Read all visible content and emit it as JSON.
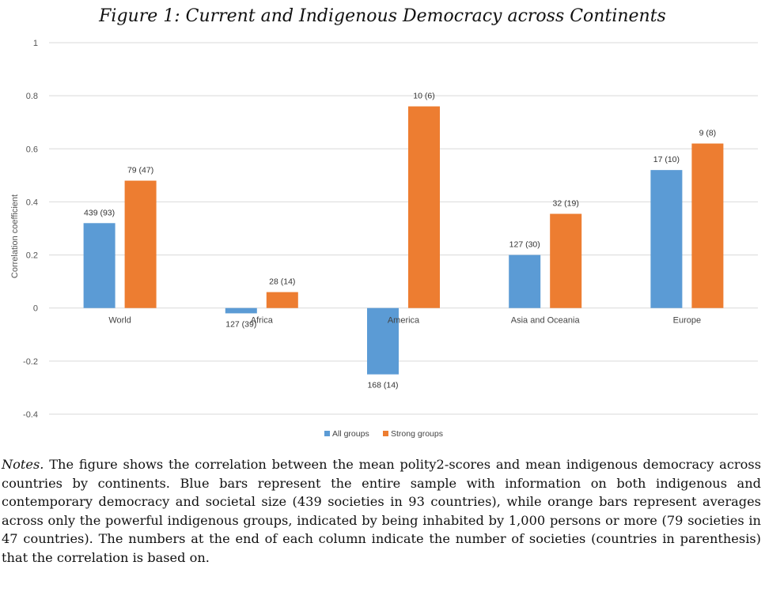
{
  "figure": {
    "title": "Figure 1: Current and Indigenous Democracy across Continents"
  },
  "chart_data": {
    "type": "bar",
    "categories": [
      "World",
      "Africa",
      "America",
      "Asia and Oceania",
      "Europe"
    ],
    "series": [
      {
        "name": "All groups",
        "color": "#5b9bd5",
        "values": [
          0.32,
          -0.02,
          -0.25,
          0.2,
          0.52
        ],
        "labels": [
          "439 (93)",
          "127 (39)",
          "168 (14)",
          "127 (30)",
          "17 (10)"
        ]
      },
      {
        "name": "Strong groups",
        "color": "#ed7d31",
        "values": [
          0.48,
          0.06,
          0.76,
          0.355,
          0.62
        ],
        "labels": [
          "79 (47)",
          "28 (14)",
          "10 (6)",
          "32 (19)",
          "9 (8)"
        ]
      }
    ],
    "ylabel": "Correlation coefficient",
    "xlabel": "",
    "ylim": [
      -0.4,
      1
    ],
    "yticks": [
      "1",
      "0.8",
      "0.6",
      "0.4",
      "0.2",
      "0",
      "-0.2",
      "-0.4"
    ],
    "grid": true,
    "legend": "bottom"
  },
  "notes": {
    "lead": "Notes.",
    "text": " The figure shows the correlation between the mean polity2-scores and mean indigenous democracy across countries by continents. Blue bars represent the entire sample with information on both indigenous and contemporary democracy and societal size (439 societies in 93 countries), while orange bars represent averages across only the powerful indigenous groups, indicated by being inhabited by 1,000 persons or more (79 societies in 47 countries). The numbers at the end of each column indicate the number of societies (countries in parenthesis) that the correlation is based on."
  }
}
